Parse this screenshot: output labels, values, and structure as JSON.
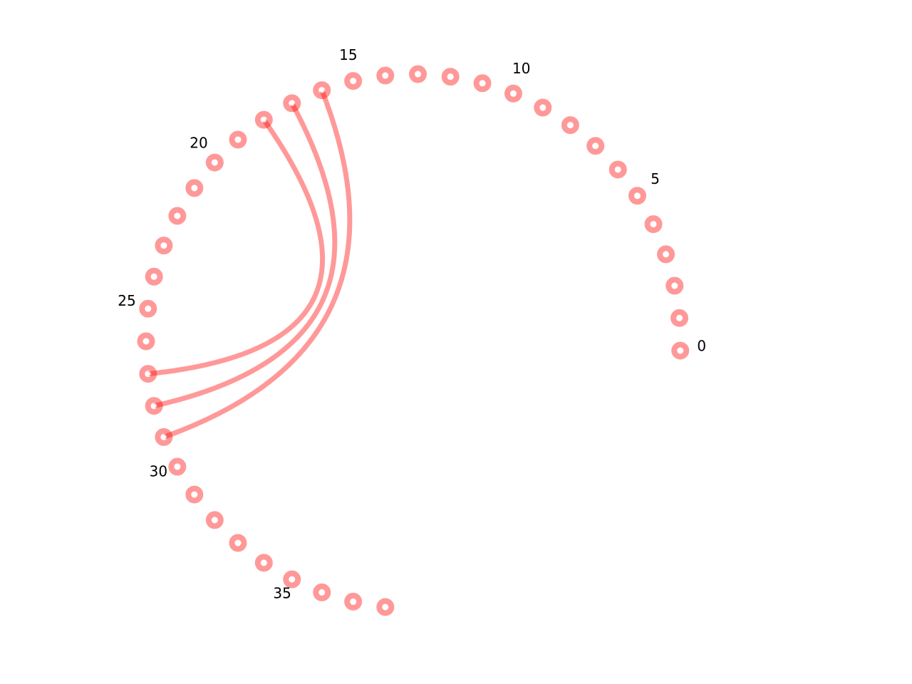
{
  "diagram": {
    "type": "circular-arc-diagram",
    "node_count": 39,
    "node_color": "#ff0000",
    "link_color": "#ff0000",
    "start_angle_deg": -2.0,
    "step_angle_deg": 7.0,
    "label_every": 5,
    "labels": [
      "0",
      "5",
      "10",
      "15",
      "20",
      "25",
      "30",
      "35"
    ],
    "links": [
      {
        "source": 16,
        "target": 29
      },
      {
        "source": 17,
        "target": 28
      },
      {
        "source": 18,
        "target": 27
      }
    ]
  }
}
